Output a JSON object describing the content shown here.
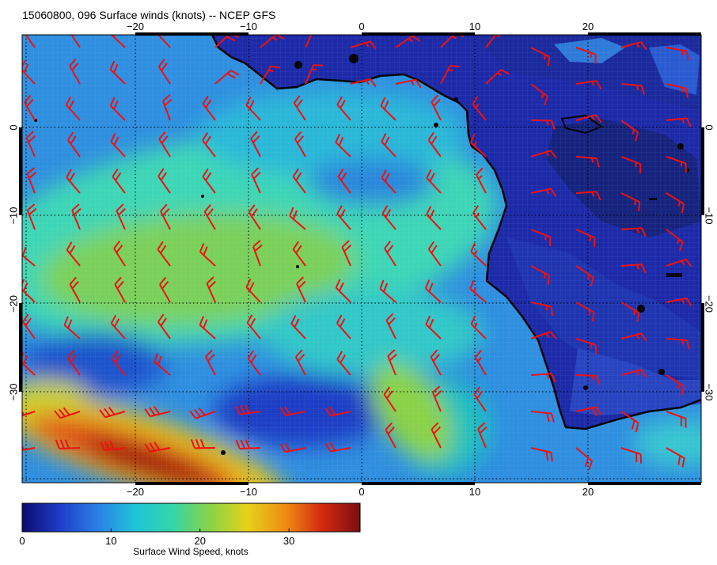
{
  "title": "15060800, 096 Surface winds (knots) -- NCEP GFS",
  "map": {
    "lon_range": [
      -30,
      30
    ],
    "lat_range": [
      -40,
      10
    ],
    "lon_ticks": [
      -20,
      -10,
      0,
      10,
      20
    ],
    "lat_ticks": [
      0,
      -10,
      -20,
      -30
    ],
    "lon_tick_labels": [
      "−20",
      "−10",
      "0",
      "10",
      "20"
    ],
    "lat_tick_labels": [
      "0",
      "−10",
      "−20",
      "−30"
    ],
    "gridlines": true,
    "land_color": "#1c2aa8",
    "coast_color": "#000000",
    "barb_color": "#ee1111"
  },
  "colorbar": {
    "title": "Surface Wind Speed, knots",
    "range": [
      0,
      38
    ],
    "ticks": [
      0,
      10,
      20,
      30
    ],
    "tick_labels": [
      "0",
      "10",
      "20",
      "30"
    ],
    "colors": [
      "#0b0b6e",
      "#1e3cc8",
      "#2a7fe6",
      "#1fc3d8",
      "#33d6a8",
      "#8ad246",
      "#e6d21a",
      "#f08c14",
      "#d2280f",
      "#7a0f0f"
    ]
  }
}
